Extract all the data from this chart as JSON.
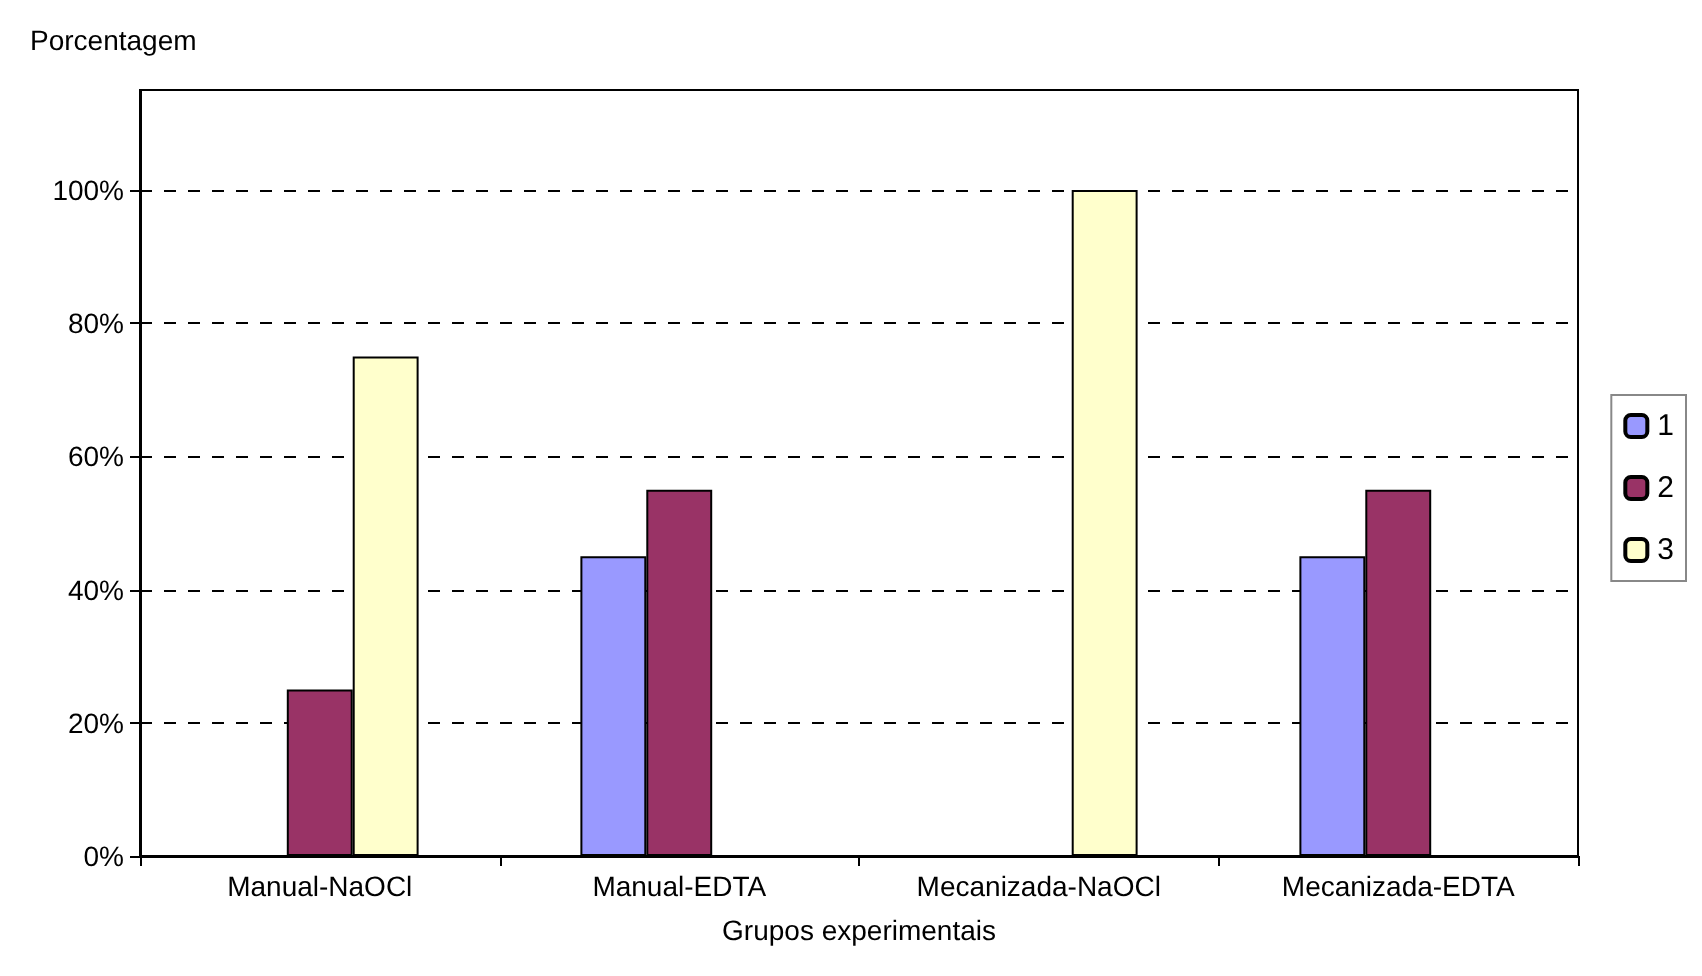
{
  "chart_data": {
    "type": "bar",
    "ylabel": "Porcentagem",
    "xlabel": "Grupos experimentais",
    "categories": [
      "Manual-NaOCl",
      "Manual-EDTA",
      "Mecanizada-NaOCl",
      "Mecanizada-EDTA"
    ],
    "series": [
      {
        "name": "1",
        "color": "#9999ff",
        "values": [
          null,
          45,
          null,
          45
        ]
      },
      {
        "name": "2",
        "color": "#993366",
        "values": [
          25,
          55,
          null,
          55
        ]
      },
      {
        "name": "3",
        "color": "#ffffcc",
        "values": [
          75,
          null,
          100,
          null
        ]
      }
    ],
    "ylim": [
      0,
      115
    ],
    "yticks": [
      {
        "value": 0,
        "label": "0%"
      },
      {
        "value": 20,
        "label": "20%"
      },
      {
        "value": 40,
        "label": "40%"
      },
      {
        "value": 60,
        "label": "60%"
      },
      {
        "value": 80,
        "label": "80%"
      },
      {
        "value": 100,
        "label": "100%"
      }
    ],
    "grid": "y",
    "legend": "right"
  }
}
